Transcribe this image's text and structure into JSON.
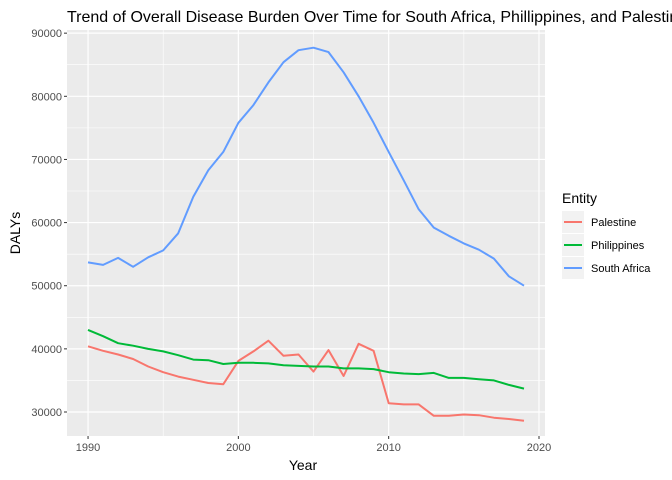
{
  "chart_data": {
    "type": "line",
    "title": "Trend of Overall Disease Burden Over Time for South Africa, Phillippines, and Palestine",
    "xlabel": "Year",
    "ylabel": "DALYs",
    "xlim": [
      1988.6,
      2020.4
    ],
    "ylim": [
      26200,
      90500
    ],
    "x_ticks": [
      1990,
      2000,
      2010,
      2020
    ],
    "y_ticks": [
      30000,
      40000,
      50000,
      60000,
      70000,
      80000,
      90000
    ],
    "x_tick_labels": [
      "1990",
      "2000",
      "2010",
      "2020"
    ],
    "y_tick_labels": [
      "30000",
      "40000",
      "50000",
      "60000",
      "70000",
      "80000",
      "90000"
    ],
    "grid": true,
    "legend": {
      "title": "Entity",
      "position": "right"
    },
    "background": "#EBEBEB",
    "x": [
      1990,
      1991,
      1992,
      1993,
      1994,
      1995,
      1996,
      1997,
      1998,
      1999,
      2000,
      2001,
      2002,
      2003,
      2004,
      2005,
      2006,
      2007,
      2008,
      2009,
      2010,
      2011,
      2012,
      2013,
      2014,
      2015,
      2016,
      2017,
      2018,
      2019
    ],
    "series": [
      {
        "name": "Palestine",
        "color": "#F8766D",
        "values": [
          40400,
          39700,
          39100,
          38400,
          37200,
          36300,
          35600,
          35100,
          34600,
          34400,
          38100,
          39600,
          41300,
          38900,
          39100,
          36400,
          39800,
          35700,
          40800,
          39700,
          31400,
          31200,
          31200,
          29400,
          29400,
          29600,
          29500,
          29100,
          28900,
          28600
        ]
      },
      {
        "name": "Philippines",
        "color": "#00BA38",
        "values": [
          43000,
          42000,
          40900,
          40500,
          40000,
          39600,
          39000,
          38300,
          38200,
          37600,
          37800,
          37800,
          37700,
          37400,
          37300,
          37200,
          37200,
          36900,
          36900,
          36800,
          36300,
          36100,
          36000,
          36200,
          35400,
          35400,
          35200,
          35000,
          34300,
          33700
        ]
      },
      {
        "name": "South Africa",
        "color": "#619CFF",
        "values": [
          53700,
          53300,
          54400,
          53000,
          54500,
          55600,
          58300,
          64100,
          68300,
          71200,
          75800,
          78600,
          82200,
          85400,
          87300,
          87700,
          87000,
          83800,
          80000,
          75800,
          71200,
          66700,
          62100,
          59200,
          57900,
          56700,
          55700,
          54300,
          51500,
          50000
        ]
      }
    ]
  }
}
